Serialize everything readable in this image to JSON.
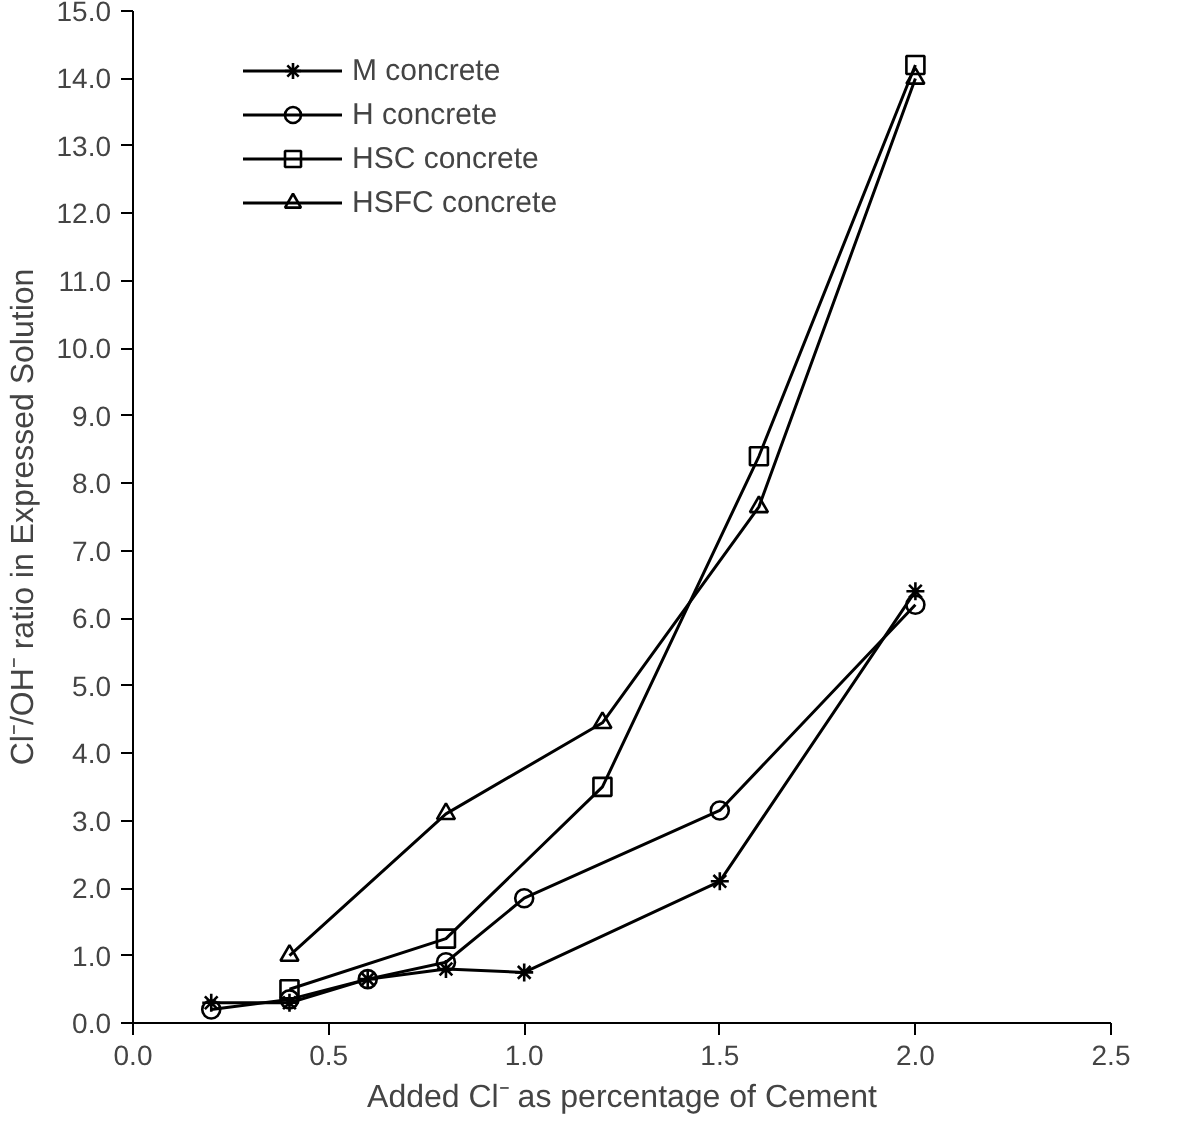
{
  "chart_data": {
    "type": "line",
    "xlabel": "Added Cl⁻ as percentage of Cement",
    "ylabel": "Cl⁻/OH⁻ ratio in Expressed Solution",
    "xlim": [
      0,
      2.5
    ],
    "ylim": [
      0,
      15
    ],
    "xticks": [
      {
        "value": 0,
        "label": "0.0"
      },
      {
        "value": 0.5,
        "label": "0.5"
      },
      {
        "value": 1,
        "label": "1.0"
      },
      {
        "value": 1.5,
        "label": "1.5"
      },
      {
        "value": 2,
        "label": "2.0"
      },
      {
        "value": 2.5,
        "label": "2.5"
      }
    ],
    "yticks": [
      {
        "value": 0,
        "label": "0.0"
      },
      {
        "value": 1,
        "label": "1.0"
      },
      {
        "value": 2,
        "label": "2.0"
      },
      {
        "value": 3,
        "label": "3.0"
      },
      {
        "value": 4,
        "label": "4.0"
      },
      {
        "value": 5,
        "label": "5.0"
      },
      {
        "value": 6,
        "label": "6.0"
      },
      {
        "value": 7,
        "label": "7.0"
      },
      {
        "value": 8,
        "label": "8.0"
      },
      {
        "value": 9,
        "label": "9.0"
      },
      {
        "value": 10,
        "label": "10.0"
      },
      {
        "value": 11,
        "label": "11.0"
      },
      {
        "value": 12,
        "label": "12.0"
      },
      {
        "value": 13,
        "label": "13.0"
      },
      {
        "value": 14,
        "label": "14.0"
      },
      {
        "value": 15,
        "label": "15.0"
      }
    ],
    "grid": false,
    "legend": "top left",
    "line_style": "solid",
    "series": [
      {
        "name": "M concrete",
        "color": "#000000",
        "marker": "cross",
        "x": [
          0.2,
          0.4,
          0.6,
          0.8,
          1.0,
          1.5,
          2.0
        ],
        "values": [
          0.3,
          0.3,
          0.65,
          0.8,
          0.75,
          2.1,
          6.4
        ]
      },
      {
        "name": "H concrete",
        "color": "#000000",
        "marker": "circle",
        "x": [
          0.2,
          0.4,
          0.6,
          0.8,
          1.0,
          1.5,
          2.0
        ],
        "values": [
          0.2,
          0.35,
          0.65,
          0.9,
          1.85,
          3.15,
          6.2
        ]
      },
      {
        "name": "HSC concrete",
        "color": "#000000",
        "marker": "square",
        "x": [
          0.4,
          0.8,
          1.2,
          1.6,
          2.0
        ],
        "values": [
          0.5,
          1.25,
          3.5,
          8.4,
          14.2
        ]
      },
      {
        "name": "HSFC concrete",
        "color": "#000000",
        "marker": "triangle",
        "x": [
          0.4,
          0.8,
          1.2,
          1.6,
          2.0
        ],
        "values": [
          1.0,
          3.1,
          4.45,
          7.65,
          14.0
        ]
      }
    ]
  }
}
